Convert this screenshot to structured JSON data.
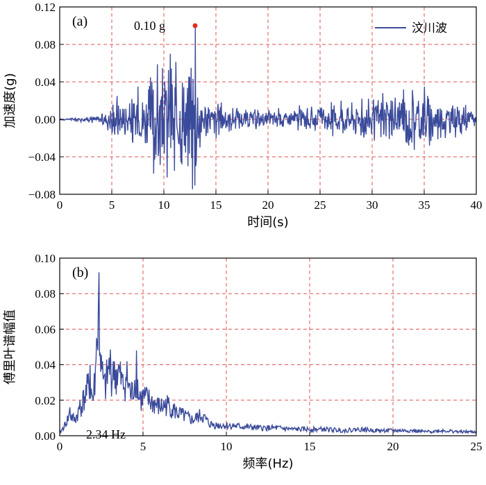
{
  "colors": {
    "line": "#3a4a9a",
    "grid": "#e05050",
    "marker": "#e03020",
    "axis": "#000000"
  },
  "chart_data": [
    {
      "type": "line",
      "panel_label": "(a)",
      "xlabel": "时间(s)",
      "ylabel": "加速度(g)",
      "xlim": [
        0,
        40
      ],
      "ylim": [
        -0.08,
        0.12
      ],
      "xticks": [
        "0",
        "5",
        "10",
        "15",
        "20",
        "25",
        "30",
        "35",
        "40"
      ],
      "yticks": [
        "−0.08",
        "−0.04",
        "0.00",
        "0.04",
        "0.08",
        "0.12"
      ],
      "grid": true,
      "legend": {
        "position": "top-right",
        "entries": [
          "汶川波"
        ]
      },
      "series": [
        {
          "name": "汶川波",
          "x": [
            0,
            1,
            2,
            3,
            4,
            4.5,
            5,
            5.5,
            6,
            6.5,
            7,
            7.5,
            8,
            8.5,
            9,
            9.3,
            9.6,
            10,
            10.3,
            10.6,
            11,
            11.3,
            11.6,
            12,
            12.3,
            12.6,
            13,
            13.3,
            13.6,
            14,
            14.5,
            15,
            15.5,
            16,
            17,
            18,
            19,
            20,
            21,
            22,
            23,
            24,
            25,
            26,
            27,
            28,
            29,
            30,
            31,
            32,
            33,
            33.5,
            34,
            34.5,
            35,
            35.5,
            36,
            37,
            38,
            39,
            40
          ],
          "y": [
            0,
            0.001,
            -0.002,
            0.003,
            -0.005,
            0.01,
            -0.015,
            0.025,
            -0.02,
            0.03,
            -0.025,
            0.035,
            -0.03,
            0.045,
            -0.058,
            0.068,
            -0.05,
            0.06,
            -0.062,
            0.07,
            -0.055,
            0.075,
            -0.072,
            0.06,
            -0.05,
            0.055,
            0.1,
            -0.05,
            0.03,
            -0.025,
            0.02,
            -0.02,
            0.018,
            -0.015,
            0.012,
            -0.012,
            0.01,
            -0.01,
            0.012,
            -0.012,
            0.015,
            -0.014,
            0.012,
            -0.015,
            0.02,
            -0.018,
            0.022,
            -0.025,
            0.028,
            -0.03,
            0.032,
            -0.028,
            0.042,
            -0.03,
            0.035,
            -0.028,
            0.025,
            -0.02,
            0.018,
            -0.012,
            0.01
          ]
        }
      ],
      "annotations": [
        {
          "text": "0.10 g",
          "x": 13.0,
          "y": 0.1
        }
      ]
    },
    {
      "type": "line",
      "panel_label": "(b)",
      "xlabel": "频率(Hz)",
      "ylabel": "傅里叶谱幅值",
      "xlim": [
        0,
        25
      ],
      "ylim": [
        0,
        0.1
      ],
      "xticks": [
        "0",
        "5",
        "10",
        "15",
        "20",
        "25"
      ],
      "yticks": [
        "0.00",
        "0.02",
        "0.04",
        "0.06",
        "0.08",
        "0.10"
      ],
      "grid": true,
      "series": [
        {
          "x": [
            0,
            0.3,
            0.6,
            0.9,
            1.2,
            1.5,
            1.8,
            2.0,
            2.2,
            2.34,
            2.5,
            2.7,
            3.0,
            3.2,
            3.5,
            3.8,
            4.0,
            4.3,
            4.6,
            4.8,
            5.0,
            5.5,
            6.0,
            6.5,
            7.0,
            7.5,
            8.0,
            8.5,
            9.0,
            9.5,
            10,
            11,
            12,
            13,
            14,
            15,
            16,
            17,
            18,
            19,
            20,
            21,
            22,
            23,
            24,
            25
          ],
          "y": [
            0.002,
            0.008,
            0.016,
            0.012,
            0.02,
            0.03,
            0.04,
            0.028,
            0.055,
            0.092,
            0.05,
            0.035,
            0.055,
            0.042,
            0.05,
            0.038,
            0.046,
            0.03,
            0.048,
            0.025,
            0.03,
            0.026,
            0.022,
            0.024,
            0.018,
            0.015,
            0.012,
            0.016,
            0.009,
            0.008,
            0.008,
            0.007,
            0.006,
            0.006,
            0.005,
            0.005,
            0.005,
            0.004,
            0.005,
            0.004,
            0.004,
            0.004,
            0.003,
            0.004,
            0.003,
            0.003
          ]
        }
      ],
      "annotations": [
        {
          "text": "2.34 Hz",
          "x": 2.34,
          "y": 0.092
        }
      ]
    }
  ]
}
